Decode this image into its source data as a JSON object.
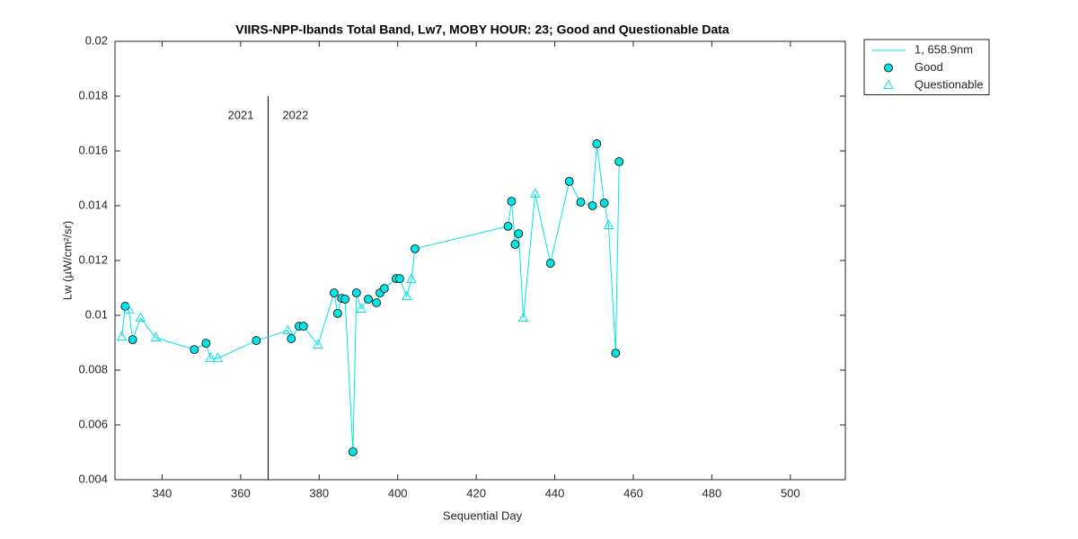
{
  "chart_data": {
    "type": "line",
    "title": "VIIRS-NPP-Ibands Total Band,  Lw7, MOBY HOUR: 23;  Good and Questionable Data",
    "x_label": "Sequential Day",
    "y_label": "Lw (µW/cm²/sr)",
    "xlim": [
      328,
      514
    ],
    "ylim": [
      0.004,
      0.02
    ],
    "xticks": [
      340,
      360,
      380,
      400,
      420,
      440,
      460,
      480,
      500
    ],
    "yticks": [
      0.004,
      0.006,
      0.008,
      0.01,
      0.012,
      0.014,
      0.016,
      0.018,
      0.02
    ],
    "grid": false,
    "legend": "outside-top-right",
    "annotations": [
      {
        "text": "2021"
      },
      {
        "text": "2022"
      }
    ],
    "divider": {
      "x": 367,
      "y": [
        0.004,
        0.018
      ]
    },
    "series": [
      {
        "name": "1, 658.9nm",
        "color": "#00e6e6",
        "marker": "none",
        "x": [
          329.7,
          330.6,
          331.5,
          332.5,
          334.5,
          338.4,
          348.2,
          351.2,
          352.3,
          354.2,
          364,
          372,
          372.9,
          374.9,
          376,
          379.7,
          383.8,
          384.7,
          385.7,
          386.6,
          388.6,
          389.5,
          390.7,
          392.5,
          394.6,
          395.5,
          396.6,
          399.6,
          400.5,
          402.3,
          403.5,
          404.4,
          428.1,
          429,
          429.9,
          430.8,
          432,
          435,
          438.9,
          443.7,
          446.6,
          449.6,
          450.7,
          452.6,
          453.7,
          455.5,
          456.4
        ],
        "values": [
          0.00921,
          0.01033,
          0.0102,
          0.00911,
          0.0099,
          0.00918,
          0.00875,
          0.00898,
          0.00843,
          0.00843,
          0.00908,
          0.00944,
          0.00915,
          0.0096,
          0.0096,
          0.00892,
          0.01082,
          0.01007,
          0.01062,
          0.01059,
          0.00502,
          0.01082,
          0.01023,
          0.01059,
          0.01046,
          0.01082,
          0.01098,
          0.01134,
          0.01134,
          0.01069,
          0.01131,
          0.01243,
          0.01325,
          0.01416,
          0.01259,
          0.01298,
          0.0099,
          0.01443,
          0.0119,
          0.01489,
          0.01413,
          0.014,
          0.01626,
          0.0141,
          0.01328,
          0.00862,
          0.01561
        ]
      },
      {
        "name": "Good",
        "color": "#00e6e6",
        "marker": "circle",
        "x": [
          330.6,
          332.5,
          348.2,
          351.2,
          364,
          372.9,
          374.9,
          376,
          383.8,
          384.7,
          385.7,
          386.6,
          388.6,
          389.5,
          392.5,
          394.6,
          395.5,
          396.6,
          399.6,
          400.5,
          404.4,
          428.1,
          429,
          429.9,
          430.8,
          438.9,
          443.7,
          446.6,
          449.6,
          450.7,
          452.6,
          455.5,
          456.4
        ],
        "values": [
          0.01033,
          0.00911,
          0.00875,
          0.00898,
          0.00908,
          0.00915,
          0.0096,
          0.0096,
          0.01082,
          0.01007,
          0.01062,
          0.01059,
          0.00502,
          0.01082,
          0.01059,
          0.01046,
          0.01082,
          0.01098,
          0.01134,
          0.01134,
          0.01243,
          0.01325,
          0.01416,
          0.01259,
          0.01298,
          0.0119,
          0.01489,
          0.01413,
          0.014,
          0.01626,
          0.0141,
          0.00862,
          0.01561
        ]
      },
      {
        "name": "Questionable",
        "color": "#00e6e6",
        "marker": "triangle",
        "x": [
          329.7,
          331.5,
          334.5,
          338.4,
          352.3,
          354.2,
          372,
          379.7,
          390.7,
          402.3,
          403.5,
          432,
          435,
          453.7
        ],
        "values": [
          0.00921,
          0.0102,
          0.0099,
          0.00918,
          0.00843,
          0.00843,
          0.00944,
          0.00892,
          0.01023,
          0.01069,
          0.01131,
          0.0099,
          0.01443,
          0.01328
        ]
      }
    ]
  }
}
